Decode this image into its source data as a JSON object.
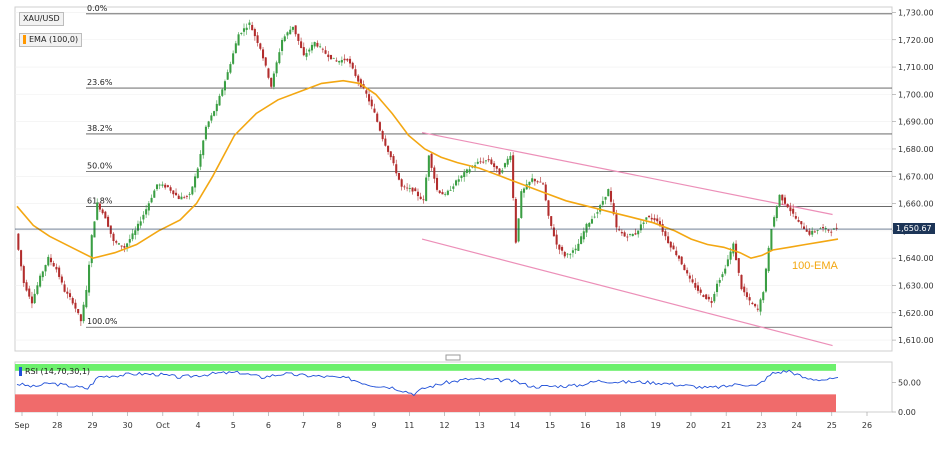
{
  "symbol": "XAU/USD",
  "indicator_label": "EMA (100,0)",
  "ema_annotation": "100-EMA",
  "rsi_label": "RSI (14,70,30,1)",
  "current_price": "1,650.67",
  "colors": {
    "up": "#3a9e43",
    "down": "#b22d2d",
    "ema": "#f3a712",
    "channel": "#ec8fb8",
    "rsi_line": "#1f4fd8",
    "rsi_overbought": "#6cf06c",
    "rsi_oversold": "#f06b6b",
    "price_badge": "#1d3557"
  },
  "chart_data": {
    "type": "candlestick",
    "title": "",
    "ylim": [
      1606,
      1732
    ],
    "price_ticks": [
      "1,730.00",
      "1,720.00",
      "1,710.00",
      "1,700.00",
      "1,690.00",
      "1,680.00",
      "1,670.00",
      "1,660.00",
      "1,650.00",
      "1,640.00",
      "1,630.00",
      "1,620.00",
      "1,610.00"
    ],
    "x_ticks": [
      "Sep",
      "28",
      "29",
      "30",
      "Oct",
      "4",
      "5",
      "6",
      "7",
      "8",
      "9",
      "11",
      "12",
      "13",
      "14",
      "15",
      "16",
      "18",
      "19",
      "20",
      "21",
      "23",
      "24",
      "25",
      "26"
    ],
    "price_path": [
      [
        0,
        1649
      ],
      [
        3,
        1631
      ],
      [
        6,
        1624
      ],
      [
        9,
        1633
      ],
      [
        12,
        1640
      ],
      [
        15,
        1636
      ],
      [
        18,
        1628
      ],
      [
        21,
        1624
      ],
      [
        24,
        1617
      ],
      [
        26,
        1628
      ],
      [
        28,
        1648
      ],
      [
        30,
        1660
      ],
      [
        33,
        1655
      ],
      [
        36,
        1646
      ],
      [
        40,
        1644
      ],
      [
        44,
        1650
      ],
      [
        48,
        1658
      ],
      [
        52,
        1667
      ],
      [
        56,
        1666
      ],
      [
        60,
        1662
      ],
      [
        64,
        1663
      ],
      [
        67,
        1673
      ],
      [
        70,
        1688
      ],
      [
        74,
        1696
      ],
      [
        78,
        1708
      ],
      [
        82,
        1722
      ],
      [
        86,
        1726
      ],
      [
        90,
        1717
      ],
      [
        94,
        1703
      ],
      [
        98,
        1720
      ],
      [
        102,
        1725
      ],
      [
        106,
        1714
      ],
      [
        110,
        1719
      ],
      [
        114,
        1715
      ],
      [
        118,
        1712
      ],
      [
        122,
        1713
      ],
      [
        126,
        1705
      ],
      [
        129,
        1700
      ],
      [
        132,
        1693
      ],
      [
        135,
        1684
      ],
      [
        138,
        1677
      ],
      [
        142,
        1666
      ],
      [
        146,
        1665
      ],
      [
        150,
        1661
      ],
      [
        152,
        1678
      ],
      [
        155,
        1665
      ],
      [
        158,
        1663
      ],
      [
        162,
        1668
      ],
      [
        166,
        1672
      ],
      [
        170,
        1675
      ],
      [
        174,
        1676
      ],
      [
        178,
        1671
      ],
      [
        182,
        1678
      ],
      [
        184,
        1646
      ],
      [
        186,
        1664
      ],
      [
        190,
        1669
      ],
      [
        194,
        1667
      ],
      [
        196,
        1655
      ],
      [
        199,
        1645
      ],
      [
        202,
        1641
      ],
      [
        206,
        1643
      ],
      [
        210,
        1652
      ],
      [
        214,
        1657
      ],
      [
        218,
        1665
      ],
      [
        221,
        1651
      ],
      [
        224,
        1648
      ],
      [
        228,
        1649
      ],
      [
        232,
        1655
      ],
      [
        236,
        1654
      ],
      [
        240,
        1646
      ],
      [
        244,
        1640
      ],
      [
        248,
        1632
      ],
      [
        252,
        1627
      ],
      [
        256,
        1624
      ],
      [
        258,
        1631
      ],
      [
        260,
        1634
      ],
      [
        264,
        1645
      ],
      [
        267,
        1629
      ],
      [
        270,
        1624
      ],
      [
        273,
        1621
      ],
      [
        275,
        1628
      ],
      [
        278,
        1651
      ],
      [
        281,
        1663
      ],
      [
        284,
        1659
      ],
      [
        288,
        1653
      ],
      [
        292,
        1649
      ],
      [
        296,
        1651
      ],
      [
        300,
        1650
      ],
      [
        302,
        1651
      ]
    ],
    "ema_path": [
      [
        0,
        1659
      ],
      [
        6,
        1652
      ],
      [
        12,
        1648
      ],
      [
        20,
        1644
      ],
      [
        28,
        1640
      ],
      [
        36,
        1642
      ],
      [
        44,
        1645
      ],
      [
        52,
        1650
      ],
      [
        60,
        1654
      ],
      [
        66,
        1660
      ],
      [
        72,
        1670
      ],
      [
        80,
        1685
      ],
      [
        88,
        1693
      ],
      [
        96,
        1698
      ],
      [
        104,
        1701
      ],
      [
        112,
        1704
      ],
      [
        120,
        1705
      ],
      [
        126,
        1704
      ],
      [
        132,
        1700
      ],
      [
        138,
        1693
      ],
      [
        144,
        1685
      ],
      [
        150,
        1680
      ],
      [
        156,
        1677
      ],
      [
        162,
        1675
      ],
      [
        170,
        1673
      ],
      [
        178,
        1670
      ],
      [
        186,
        1667
      ],
      [
        194,
        1664
      ],
      [
        202,
        1661
      ],
      [
        210,
        1659
      ],
      [
        218,
        1657
      ],
      [
        226,
        1655
      ],
      [
        234,
        1653
      ],
      [
        242,
        1650
      ],
      [
        248,
        1647
      ],
      [
        254,
        1645
      ],
      [
        260,
        1644
      ],
      [
        266,
        1642
      ],
      [
        270,
        1640
      ],
      [
        274,
        1641
      ],
      [
        278,
        1643
      ],
      [
        284,
        1644
      ],
      [
        290,
        1645
      ],
      [
        296,
        1646
      ],
      [
        302,
        1647
      ]
    ],
    "fibonacci": [
      {
        "label": "0.0%",
        "price": 1729.5
      },
      {
        "label": "23.6%",
        "price": 1702.3
      },
      {
        "label": "38.2%",
        "price": 1685.5
      },
      {
        "label": "50.0%",
        "price": 1671.8
      },
      {
        "label": "61.8%",
        "price": 1658.9
      },
      {
        "label": "100.0%",
        "price": 1614.7
      }
    ],
    "channel_upper": [
      [
        149,
        1686
      ],
      [
        300,
        1656
      ]
    ],
    "channel_lower": [
      [
        149,
        1647
      ],
      [
        300,
        1608
      ]
    ],
    "rsi": {
      "ylim": [
        0,
        85
      ],
      "ticks": [
        "50.00",
        "0.00"
      ],
      "overbought": 70,
      "oversold": 30,
      "values": [
        [
          0,
          48
        ],
        [
          6,
          43
        ],
        [
          12,
          49
        ],
        [
          20,
          44
        ],
        [
          26,
          40
        ],
        [
          30,
          60
        ],
        [
          36,
          62
        ],
        [
          44,
          65
        ],
        [
          52,
          64
        ],
        [
          60,
          59
        ],
        [
          66,
          62
        ],
        [
          74,
          66
        ],
        [
          82,
          67
        ],
        [
          90,
          59
        ],
        [
          98,
          65
        ],
        [
          106,
          62
        ],
        [
          114,
          60
        ],
        [
          122,
          57
        ],
        [
          130,
          46
        ],
        [
          138,
          42
        ],
        [
          146,
          31
        ],
        [
          150,
          41
        ],
        [
          158,
          50
        ],
        [
          166,
          56
        ],
        [
          174,
          55
        ],
        [
          182,
          53
        ],
        [
          190,
          43
        ],
        [
          198,
          44
        ],
        [
          206,
          45
        ],
        [
          214,
          53
        ],
        [
          222,
          51
        ],
        [
          230,
          51
        ],
        [
          238,
          49
        ],
        [
          246,
          45
        ],
        [
          254,
          41
        ],
        [
          260,
          43
        ],
        [
          266,
          48
        ],
        [
          272,
          44
        ],
        [
          278,
          66
        ],
        [
          284,
          70
        ],
        [
          290,
          57
        ],
        [
          296,
          55
        ],
        [
          302,
          56
        ]
      ]
    }
  }
}
